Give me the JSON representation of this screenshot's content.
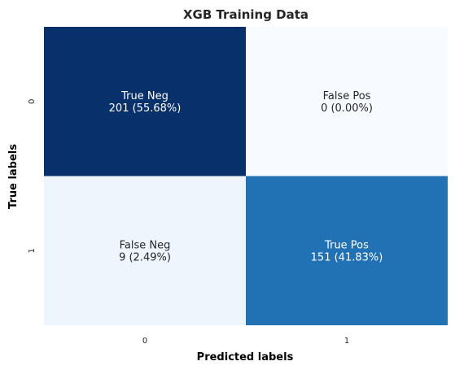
{
  "chart_data": {
    "type": "heatmap",
    "title": "XGB Training Data",
    "xlabel": "Predicted labels",
    "ylabel": "True labels",
    "x_categories": [
      "0",
      "1"
    ],
    "y_categories": [
      "0",
      "1"
    ],
    "values": [
      [
        201,
        0
      ],
      [
        9,
        151
      ]
    ],
    "percentages": [
      [
        "55.68%",
        "0.00%"
      ],
      [
        "2.49%",
        "41.83%"
      ]
    ],
    "cell_names": [
      [
        "True Neg",
        "False Pos"
      ],
      [
        "False Neg",
        "True Pos"
      ]
    ],
    "cell_text": [
      [
        [
          "True Neg",
          "201 (55.68%)"
        ],
        [
          "False Pos",
          "0 (0.00%)"
        ]
      ],
      [
        [
          "False Neg",
          "9 (2.49%)"
        ],
        [
          "True Pos",
          "151 (41.83%)"
        ]
      ]
    ],
    "colormap": "Blues",
    "colormap_stops": [
      "#f7fbff",
      "#deebf7",
      "#c6dbef",
      "#9ecae1",
      "#6baed6",
      "#4292c6",
      "#2171b5",
      "#08519c",
      "#08306b"
    ],
    "text_color_dark": "#262626",
    "text_color_light": "#ffffff",
    "colorbar": false
  }
}
